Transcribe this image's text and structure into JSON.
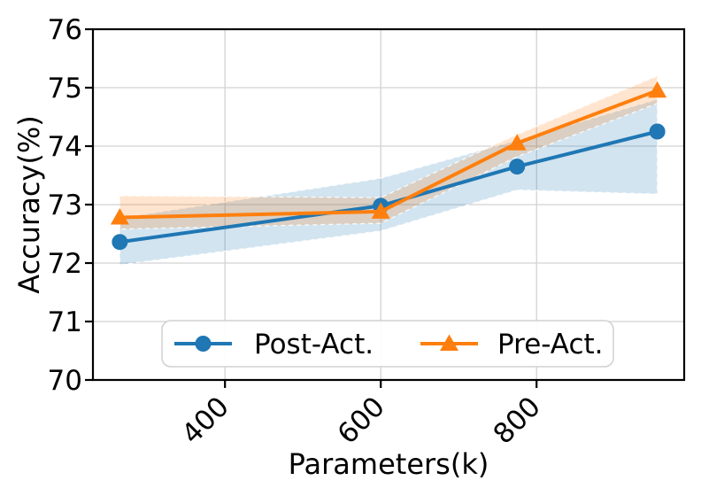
{
  "chart_data": {
    "type": "line",
    "title": "",
    "xlabel": "Parameters(k)",
    "ylabel": "Accuracy(%)",
    "xlim": [
      230.5,
      989.5
    ],
    "ylim": [
      70,
      76
    ],
    "x_ticks": [
      400,
      600,
      800
    ],
    "y_ticks": [
      70,
      71,
      72,
      73,
      74,
      75,
      76
    ],
    "x_tick_rotation": 45,
    "grid": true,
    "band_alpha": 0.2,
    "legend": {
      "position": "lower center",
      "labels": [
        "Post-Act.",
        "Pre-Act."
      ]
    },
    "series": [
      {
        "name": "Post-Act.",
        "color": "#1f77b4",
        "marker": "circle",
        "x": [
          265,
          600,
          775,
          955
        ],
        "y": [
          72.36,
          72.98,
          73.65,
          74.25
        ],
        "band_upper": [
          72.77,
          73.45,
          74.1,
          74.8
        ],
        "band_lower": [
          71.97,
          72.55,
          73.25,
          73.18
        ]
      },
      {
        "name": "Pre-Act.",
        "color": "#ff7f0e",
        "marker": "triangle",
        "x": [
          265,
          600,
          775,
          955
        ],
        "y": [
          72.78,
          72.88,
          74.05,
          74.95
        ],
        "band_upper": [
          73.15,
          73.12,
          74.2,
          75.2
        ],
        "band_lower": [
          72.58,
          72.68,
          73.82,
          74.73
        ]
      }
    ]
  }
}
